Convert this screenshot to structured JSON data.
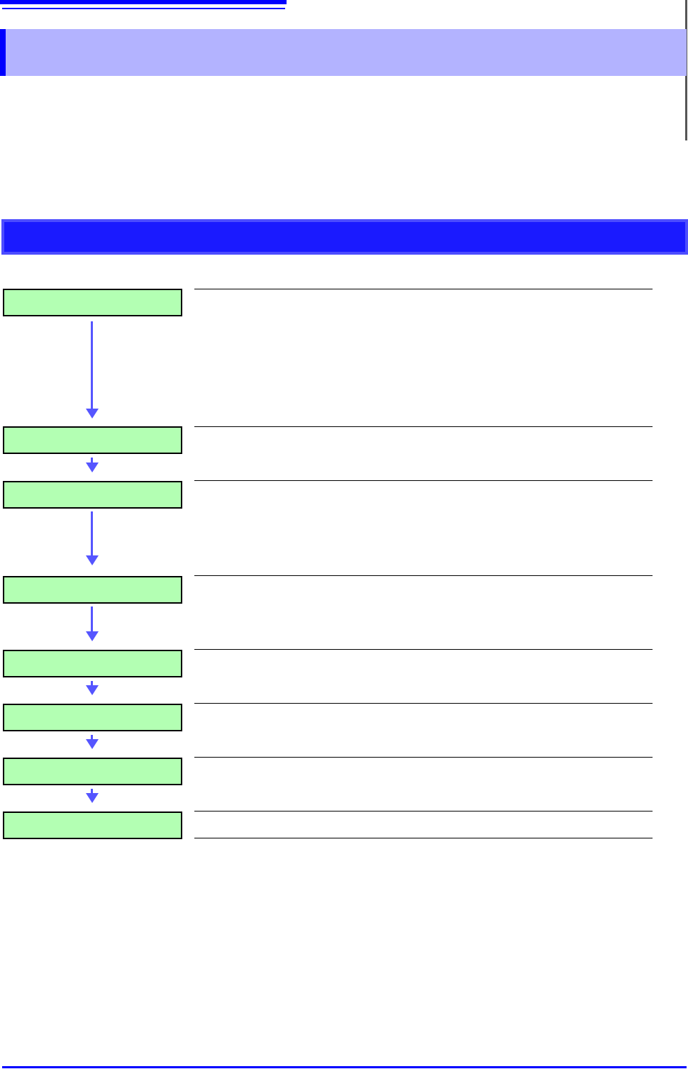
{
  "header": {
    "title": "",
    "subtitle": ""
  },
  "flow": {
    "steps": [
      {
        "label": "",
        "description": ""
      },
      {
        "label": "",
        "description": ""
      },
      {
        "label": "",
        "description": ""
      },
      {
        "label": "",
        "description": ""
      },
      {
        "label": "",
        "description": ""
      },
      {
        "label": "",
        "description": ""
      },
      {
        "label": "",
        "description": ""
      },
      {
        "label": "",
        "description": ""
      }
    ]
  },
  "colors": {
    "accent": "#0000ff",
    "section_header_bg": "#b3b3ff",
    "sub_header_bg": "#1a1aff",
    "step_bg": "#b3ffb3",
    "arrow": "#5555ff"
  }
}
